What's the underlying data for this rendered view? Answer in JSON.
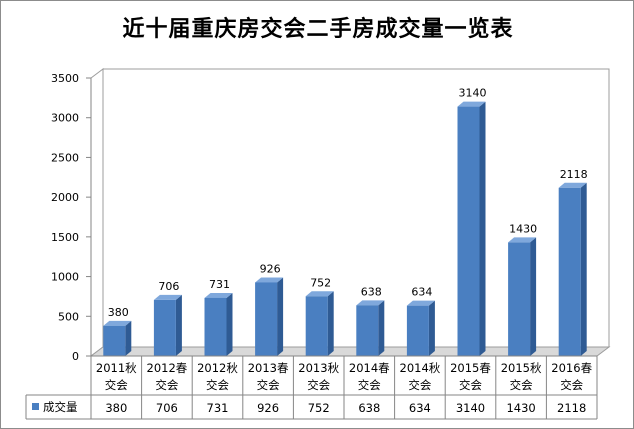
{
  "chart_data": {
    "type": "bar",
    "title": "近十届重庆房交会二手房成交量一览表",
    "categories": [
      [
        "2011秋",
        "交会"
      ],
      [
        "2012春",
        "交会"
      ],
      [
        "2012秋",
        "交会"
      ],
      [
        "2013春",
        "交会"
      ],
      [
        "2013秋",
        "交会"
      ],
      [
        "2014春",
        "交会"
      ],
      [
        "2014秋",
        "交会"
      ],
      [
        "2015春",
        "交会"
      ],
      [
        "2015秋",
        "交会"
      ],
      [
        "2016春",
        "交会"
      ]
    ],
    "series": [
      {
        "name": "成交量",
        "values": [
          380,
          706,
          731,
          926,
          752,
          638,
          634,
          3140,
          1430,
          2118
        ],
        "color": "#4a7fc1"
      }
    ],
    "ylim": [
      0,
      3500
    ],
    "yticks": [
      0,
      500,
      1000,
      1500,
      2000,
      2500,
      3000,
      3500
    ],
    "grid": false,
    "data_table": true,
    "data_labels": true
  }
}
